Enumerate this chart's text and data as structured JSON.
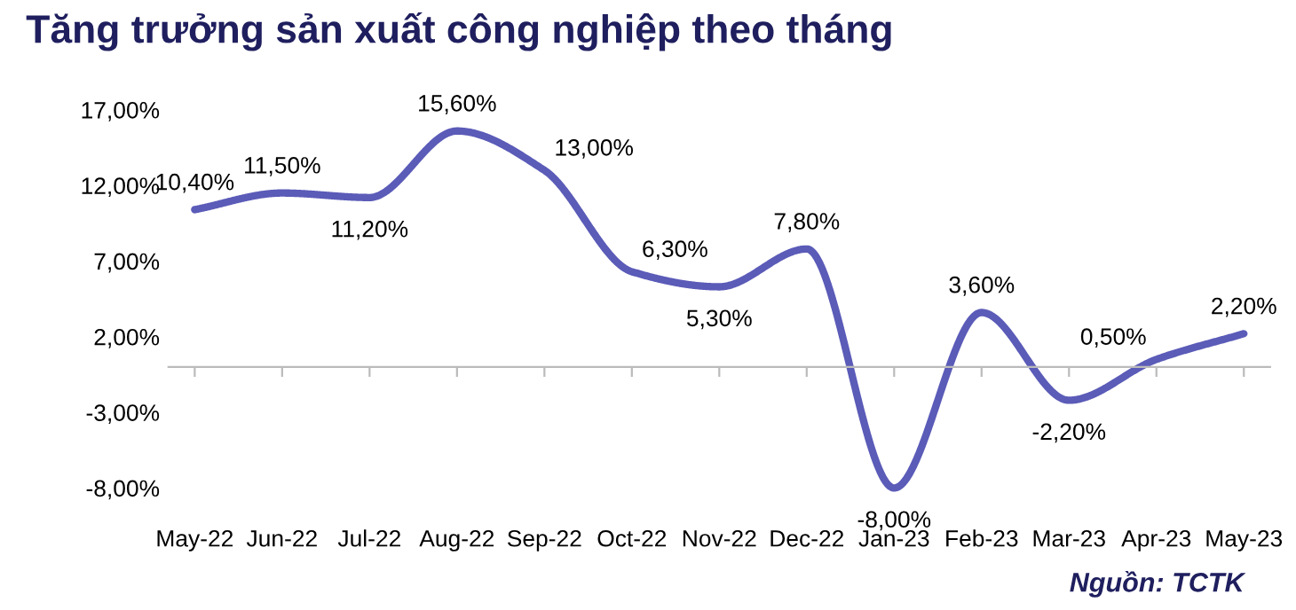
{
  "chart_data": {
    "type": "line",
    "title": "Tăng trưởng sản xuất công nghiệp theo tháng",
    "categories": [
      "May-22",
      "Jun-22",
      "Jul-22",
      "Aug-22",
      "Sep-22",
      "Oct-22",
      "Nov-22",
      "Dec-22",
      "Jan-23",
      "Feb-23",
      "Mar-23",
      "Apr-23",
      "May-23"
    ],
    "series": [
      {
        "color": "#5b5bb8",
        "values": [
          10.4,
          11.5,
          11.2,
          15.6,
          13.0,
          6.3,
          5.3,
          7.8,
          -8.0,
          3.6,
          -2.2,
          0.5,
          2.2
        ],
        "value_labels": [
          "10,40%",
          "11,50%",
          "11,20%",
          "15,60%",
          "13,00%",
          "6,30%",
          "5,30%",
          "7,80%",
          "-8,00%",
          "3,60%",
          "-2,20%",
          "0,50%",
          "2,20%"
        ]
      }
    ],
    "ylim": [
      -8,
      17
    ],
    "yticks": [
      {
        "value": -8,
        "label": "-8,00%"
      },
      {
        "value": -3,
        "label": "-3,00%"
      },
      {
        "value": 2,
        "label": "2,00%"
      },
      {
        "value": 7,
        "label": "7,00%"
      },
      {
        "value": 12,
        "label": "12,00%"
      },
      {
        "value": 17,
        "label": "17,00%"
      }
    ],
    "grid": false,
    "marker": "none",
    "line_style": "solid",
    "annotations": [
      "Nguồn: TCTK"
    ]
  }
}
